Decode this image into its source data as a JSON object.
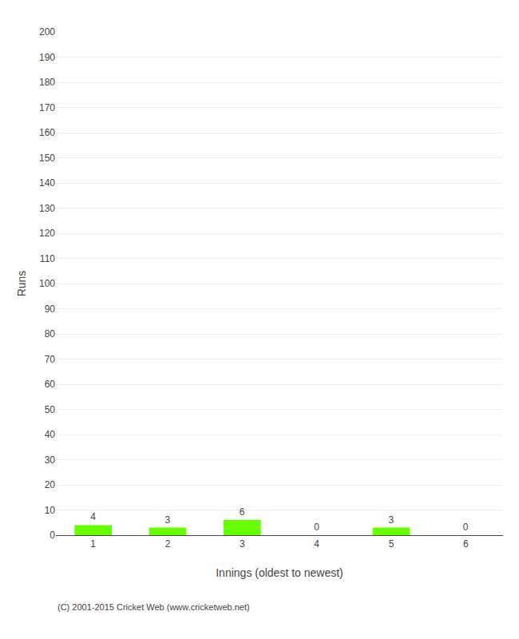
{
  "chart_data": {
    "type": "bar",
    "xlabel": "Innings (oldest to newest)",
    "ylabel": "Runs",
    "categories": [
      1,
      2,
      3,
      4,
      5,
      6
    ],
    "values": [
      4,
      3,
      6,
      0,
      3,
      0
    ],
    "color": "#66ff00",
    "ylim": [
      0,
      200
    ],
    "yticks": [
      0,
      10,
      20,
      30,
      40,
      50,
      60,
      70,
      80,
      90,
      100,
      110,
      120,
      130,
      140,
      150,
      160,
      170,
      180,
      190,
      200
    ],
    "grid": true,
    "data_labels": true,
    "annotations": [
      "(C) 2001-2015 Cricket Web (www.cricketweb.net)"
    ]
  }
}
